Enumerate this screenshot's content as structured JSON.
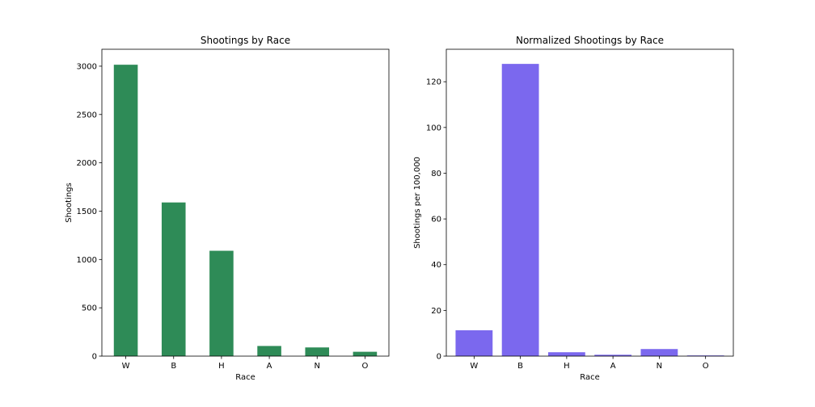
{
  "chart_data": [
    {
      "type": "bar",
      "title": "Shootings by Race",
      "xlabel": "Race",
      "ylabel": "Shootings",
      "categories": [
        "W",
        "B",
        "H",
        "A",
        "N",
        "O"
      ],
      "values": [
        3015,
        1590,
        1090,
        105,
        90,
        45
      ],
      "ylim": [
        0,
        3175
      ],
      "yticks": [
        0,
        500,
        1000,
        1500,
        2000,
        2500,
        3000
      ],
      "color": "#2e8b57",
      "grid": false
    },
    {
      "type": "bar",
      "title": "Normalized Shootings by Race",
      "xlabel": "Race",
      "ylabel": "Shootings per 100,000",
      "categories": [
        "W",
        "B",
        "H",
        "A",
        "N",
        "O"
      ],
      "values": [
        11.3,
        127.8,
        1.7,
        0.6,
        3.1,
        0.3
      ],
      "ylim": [
        0,
        134.2
      ],
      "yticks": [
        0,
        20,
        40,
        60,
        80,
        100,
        120
      ],
      "color": "#7b68ee",
      "grid": false
    }
  ]
}
